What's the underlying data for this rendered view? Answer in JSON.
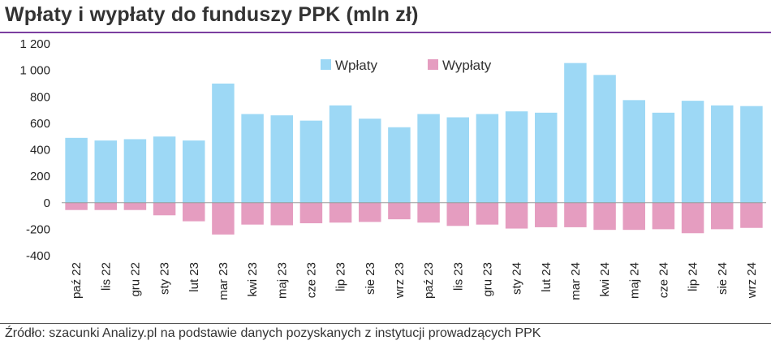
{
  "title": "Wpłaty i wypłaty do funduszy PPK (mln zł)",
  "source": "Źródło: szacunki Analizy.pl na podstawie danych pozyskanych z instytucji prowadzących PPK",
  "chart_data": {
    "type": "bar",
    "categories": [
      "paź 22",
      "lis 22",
      "gru 22",
      "sty 23",
      "lut 23",
      "mar 23",
      "kwi 23",
      "maj 23",
      "cze 23",
      "lip 23",
      "sie 23",
      "wrz 23",
      "paź 23",
      "lis 23",
      "gru 23",
      "sty 24",
      "lut 24",
      "mar 24",
      "kwi 24",
      "maj 24",
      "cze 24",
      "lip 24",
      "sie 24",
      "wrz 24"
    ],
    "series": [
      {
        "name": "Wpłaty",
        "color": "#9dd8f5",
        "values": [
          490,
          470,
          480,
          500,
          470,
          900,
          670,
          660,
          620,
          735,
          635,
          570,
          670,
          645,
          670,
          690,
          680,
          1055,
          965,
          775,
          680,
          770,
          735,
          730
        ]
      },
      {
        "name": "Wypłaty",
        "color": "#e59dc0",
        "values": [
          -55,
          -55,
          -55,
          -95,
          -140,
          -240,
          -165,
          -170,
          -155,
          -150,
          -145,
          -125,
          -150,
          -175,
          -165,
          -195,
          -185,
          -185,
          -205,
          -205,
          -200,
          -230,
          -200,
          -190
        ]
      }
    ],
    "yticks": [
      -400,
      -200,
      0,
      200,
      400,
      600,
      800,
      1000,
      1200
    ],
    "ytick_labels": [
      "-400",
      "-200",
      "0",
      "200",
      "400",
      "600",
      "800",
      "1 000",
      "1 200"
    ],
    "ylim": [
      -400,
      1200
    ],
    "grid": false,
    "legend_position": "top-center",
    "xlabel": "",
    "ylabel": ""
  }
}
